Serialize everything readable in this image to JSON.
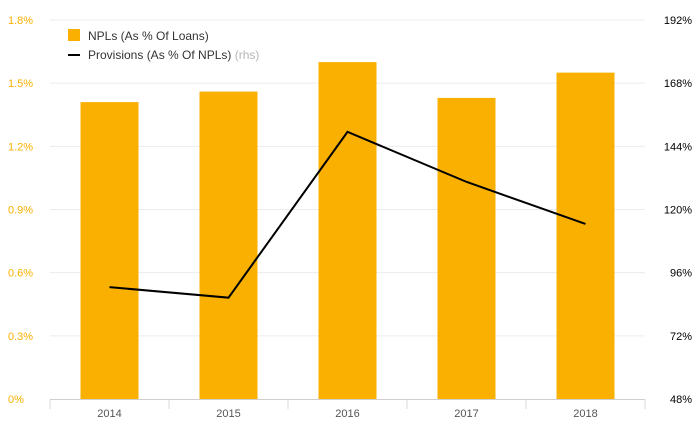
{
  "chart_data": {
    "type": "bar+line",
    "categories": [
      "2014",
      "2015",
      "2016",
      "2017",
      "2018"
    ],
    "series": [
      {
        "name": "NPLs (As % Of Loans)",
        "type": "bar",
        "axis": "left",
        "color": "#f9b000",
        "values": [
          1.41,
          1.46,
          1.6,
          1.43,
          1.55
        ]
      },
      {
        "name": "Provisions (As % Of NPLs)",
        "axis_note": "(rhs)",
        "type": "line",
        "axis": "right",
        "color": "#000000",
        "values": [
          90.5,
          86.5,
          149.5,
          130.5,
          114.5
        ]
      }
    ],
    "left_axis": {
      "min": 0,
      "max": 1.8,
      "ticks": [
        0,
        0.3,
        0.6,
        0.9,
        1.2,
        1.5,
        1.8
      ],
      "tick_labels": [
        "0%",
        "0.3%",
        "0.6%",
        "0.9%",
        "1.2%",
        "1.5%",
        "1.8%"
      ],
      "color": "#f9b000"
    },
    "right_axis": {
      "min": 48,
      "max": 192,
      "ticks": [
        48,
        72,
        96,
        120,
        144,
        168,
        192
      ],
      "tick_labels": [
        "48%",
        "72%",
        "96%",
        "120%",
        "144%",
        "168%",
        "192%"
      ],
      "color": "#000000"
    },
    "grid": true,
    "legend_position": "top-left",
    "title": "",
    "xlabel": "",
    "ylabel": ""
  }
}
